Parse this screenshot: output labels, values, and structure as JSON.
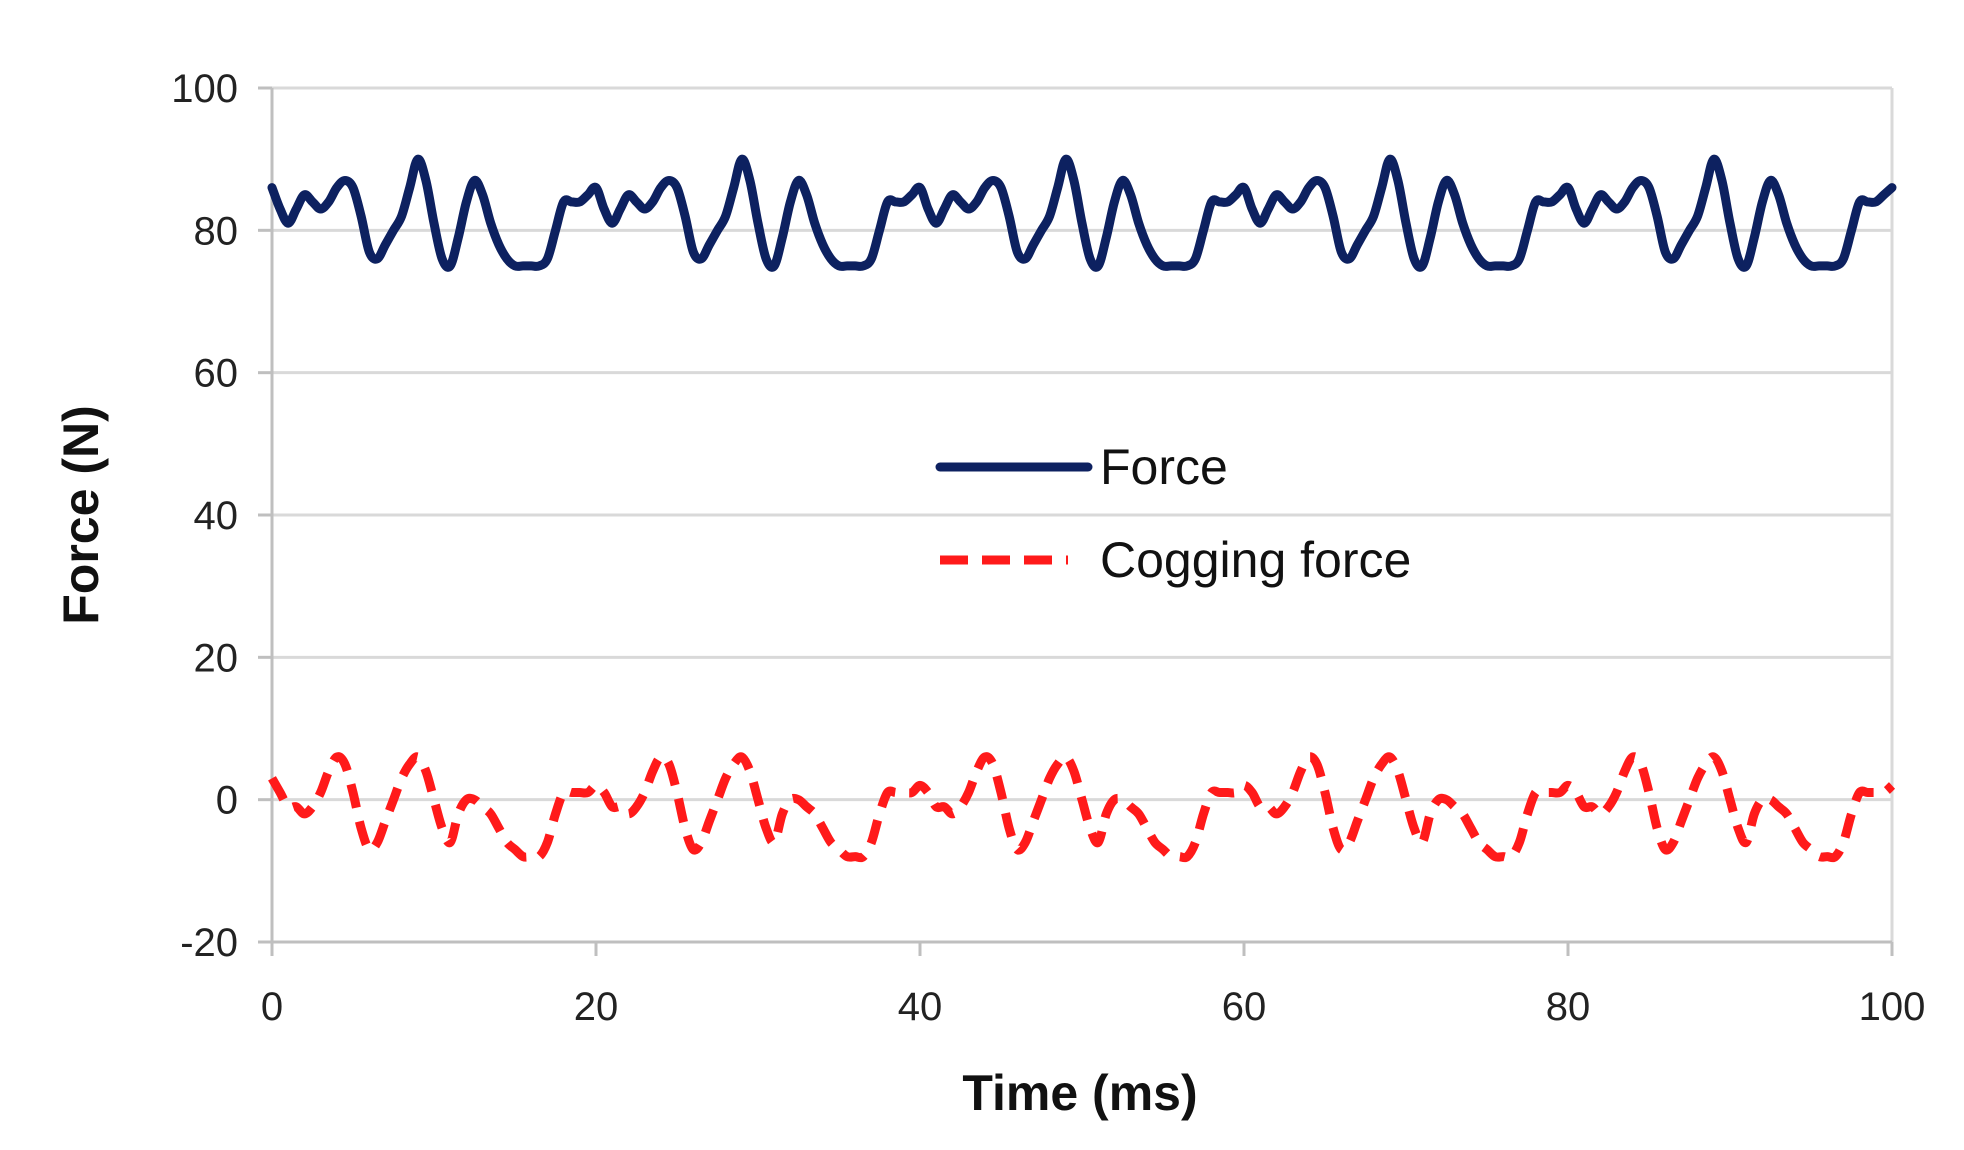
{
  "chart_data": {
    "type": "line",
    "title": "",
    "xlabel": "Time (ms)",
    "ylabel": "Force (N)",
    "xlim": [
      0,
      100
    ],
    "ylim": [
      -20,
      100
    ],
    "x_ticks": [
      0,
      20,
      40,
      60,
      80,
      100
    ],
    "x_tick_labels": [
      "0",
      "20",
      "40",
      "60",
      "80",
      "100"
    ],
    "y_ticks": [
      -20,
      0,
      20,
      40,
      60,
      80,
      100
    ],
    "y_tick_labels": [
      "-20",
      "0",
      "20",
      "40",
      "60",
      "80",
      "100"
    ],
    "grid": "horizontal",
    "legend_position": "center",
    "colors": {
      "force": "#0d2160",
      "cogging": "#ff1a1a",
      "grid": "#d9d9d9",
      "axis": "#bfbfbf"
    },
    "series": [
      {
        "name": "Force",
        "style": "solid",
        "x": [
          0,
          0.5,
          1,
          1.5,
          2,
          2.5,
          3,
          3.5,
          4,
          4.5,
          5,
          5.5,
          6,
          6.5,
          7,
          7.5,
          8,
          8.5,
          9,
          9.5,
          10,
          10.5,
          11,
          11.5,
          12,
          12.5,
          13,
          13.5,
          14,
          14.5,
          15,
          15.5,
          16,
          16.5,
          17,
          17.5,
          18,
          18.5,
          19,
          19.5,
          20
        ],
        "values": [
          86,
          83,
          81,
          83,
          85,
          84,
          83,
          84,
          86,
          87,
          86,
          82,
          77,
          76,
          78,
          80,
          82,
          86,
          90,
          87,
          81,
          76,
          75,
          79,
          84,
          87,
          85,
          81,
          78,
          76,
          75,
          75,
          75,
          75,
          76,
          80,
          84,
          84,
          84,
          85,
          86
        ]
      },
      {
        "name": "Cogging force",
        "style": "dashed",
        "x": [
          0,
          0.5,
          1,
          1.5,
          2,
          2.5,
          3,
          3.5,
          4,
          4.5,
          5,
          5.5,
          6,
          6.5,
          7,
          7.5,
          8,
          8.5,
          9,
          9.5,
          10,
          10.5,
          11,
          11.5,
          12,
          12.5,
          13,
          13.5,
          14,
          14.5,
          15,
          15.5,
          16,
          16.5,
          17,
          17.5,
          18,
          18.5,
          19,
          19.5,
          20
        ],
        "values": [
          3,
          1,
          -1,
          -1,
          -2,
          -1,
          1,
          4,
          6,
          5,
          1,
          -4,
          -7,
          -6,
          -3,
          0,
          3,
          5,
          6,
          4,
          0,
          -4,
          -6,
          -2,
          0,
          0,
          -1,
          -2,
          -4,
          -6,
          -7,
          -8,
          -8,
          -8,
          -6,
          -2,
          1,
          1,
          1,
          1,
          2
        ]
      }
    ],
    "repeat_period": 20,
    "legend": [
      "Force",
      "Cogging force"
    ]
  }
}
